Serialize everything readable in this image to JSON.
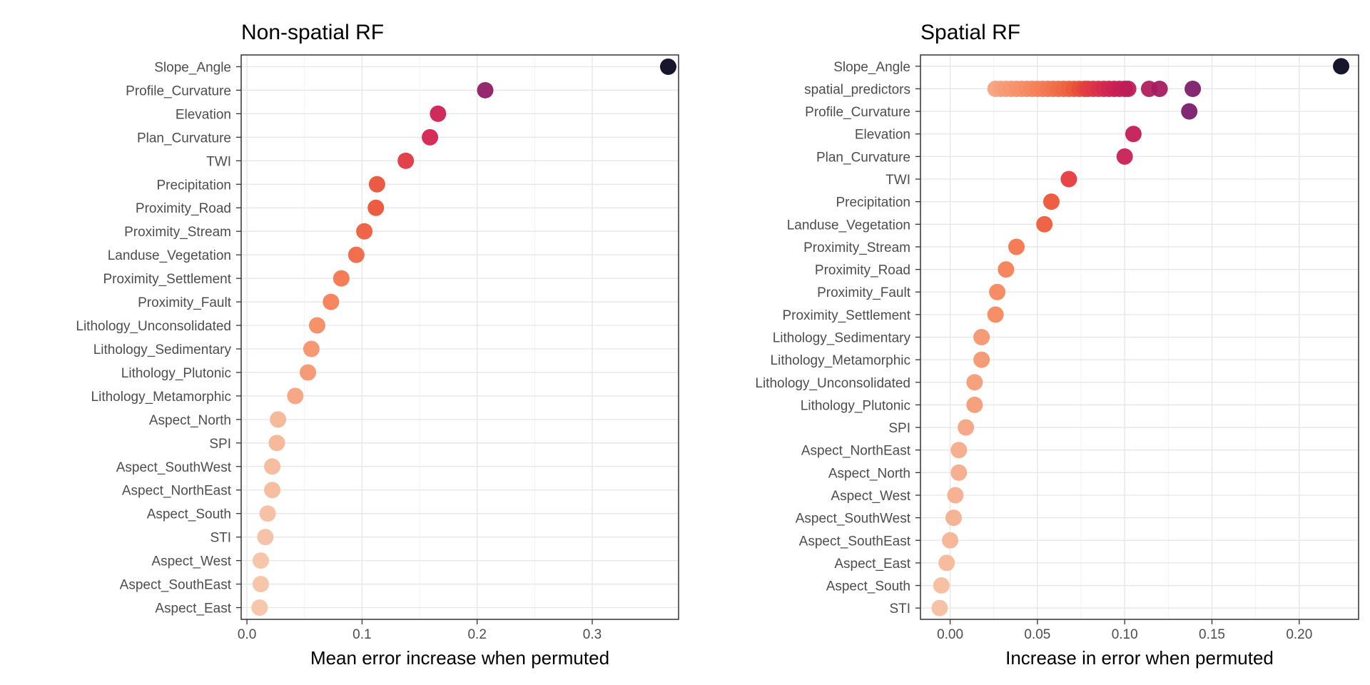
{
  "chart_data": [
    {
      "type": "scatter",
      "title": "Non-spatial RF",
      "xlabel": "Mean error increase when permuted",
      "ylabel": "",
      "xlim": [
        -0.005,
        0.375
      ],
      "xticks": [
        0.0,
        0.1,
        0.2,
        0.3
      ],
      "xtick_labels": [
        "0.0",
        "0.1",
        "0.2",
        "0.3"
      ],
      "grid": true,
      "color_scale": "magma (dark = high importance, light = low importance)",
      "categories": [
        "Slope_Angle",
        "Profile_Curvature",
        "Elevation",
        "Plan_Curvature",
        "TWI",
        "Precipitation",
        "Proximity_Road",
        "Proximity_Stream",
        "Landuse_Vegetation",
        "Proximity_Settlement",
        "Proximity_Fault",
        "Lithology_Unconsolidated",
        "Lithology_Sedimentary",
        "Lithology_Plutonic",
        "Lithology_Metamorphic",
        "Aspect_North",
        "SPI",
        "Aspect_SouthWest",
        "Aspect_NorthEast",
        "Aspect_South",
        "STI",
        "Aspect_West",
        "Aspect_SouthEast",
        "Aspect_East"
      ],
      "points": [
        {
          "y": "Slope_Angle",
          "x": 0.366,
          "color": "#0b0a22"
        },
        {
          "y": "Profile_Curvature",
          "x": 0.207,
          "color": "#8e1d66"
        },
        {
          "y": "Elevation",
          "x": 0.166,
          "color": "#cc2155"
        },
        {
          "y": "Plan_Curvature",
          "x": 0.159,
          "color": "#d52250"
        },
        {
          "y": "TWI",
          "x": 0.138,
          "color": "#e03940"
        },
        {
          "y": "Precipitation",
          "x": 0.113,
          "color": "#ea5138"
        },
        {
          "y": "Proximity_Road",
          "x": 0.112,
          "color": "#ea5338"
        },
        {
          "y": "Proximity_Stream",
          "x": 0.102,
          "color": "#ee5d3e"
        },
        {
          "y": "Landuse_Vegetation",
          "x": 0.095,
          "color": "#f06644"
        },
        {
          "y": "Proximity_Settlement",
          "x": 0.082,
          "color": "#f3754e"
        },
        {
          "y": "Proximity_Fault",
          "x": 0.073,
          "color": "#f47f57"
        },
        {
          "y": "Lithology_Unconsolidated",
          "x": 0.061,
          "color": "#f58c61"
        },
        {
          "y": "Lithology_Sedimentary",
          "x": 0.056,
          "color": "#f6926a"
        },
        {
          "y": "Lithology_Plutonic",
          "x": 0.053,
          "color": "#f69670"
        },
        {
          "y": "Lithology_Metamorphic",
          "x": 0.042,
          "color": "#f6a27e"
        },
        {
          "y": "Aspect_North",
          "x": 0.027,
          "color": "#f6b594"
        },
        {
          "y": "SPI",
          "x": 0.026,
          "color": "#f6b696"
        },
        {
          "y": "Aspect_SouthWest",
          "x": 0.022,
          "color": "#f6ba9b"
        },
        {
          "y": "Aspect_NorthEast",
          "x": 0.022,
          "color": "#f6ba9b"
        },
        {
          "y": "Aspect_South",
          "x": 0.018,
          "color": "#f6bea0"
        },
        {
          "y": "STI",
          "x": 0.016,
          "color": "#f6c0a3"
        },
        {
          "y": "Aspect_West",
          "x": 0.012,
          "color": "#f6c3a6"
        },
        {
          "y": "Aspect_SouthEast",
          "x": 0.012,
          "color": "#f6c3a6"
        },
        {
          "y": "Aspect_East",
          "x": 0.011,
          "color": "#f6c4a7"
        }
      ]
    },
    {
      "type": "scatter",
      "title": "Spatial RF",
      "xlabel": "Increase in error when permuted",
      "ylabel": "",
      "xlim": [
        -0.017,
        0.234
      ],
      "xticks": [
        0.0,
        0.05,
        0.1,
        0.15,
        0.2
      ],
      "xtick_labels": [
        "0.00",
        "0.05",
        "0.10",
        "0.15",
        "0.20"
      ],
      "grid": true,
      "color_scale": "magma (dark = high importance, light = low importance)",
      "categories": [
        "Slope_Angle",
        "spatial_predictors",
        "Profile_Curvature",
        "Elevation",
        "Plan_Curvature",
        "TWI",
        "Precipitation",
        "Landuse_Vegetation",
        "Proximity_Stream",
        "Proximity_Road",
        "Proximity_Fault",
        "Proximity_Settlement",
        "Lithology_Sedimentary",
        "Lithology_Metamorphic",
        "Lithology_Unconsolidated",
        "Lithology_Plutonic",
        "SPI",
        "Aspect_NorthEast",
        "Aspect_North",
        "Aspect_West",
        "Aspect_SouthWest",
        "Aspect_SouthEast",
        "Aspect_East",
        "Aspect_South",
        "STI"
      ],
      "points": [
        {
          "y": "Slope_Angle",
          "x": 0.224,
          "color": "#0b0a22"
        },
        {
          "y": "spatial_predictors",
          "x": 0.026,
          "color": "#f6a27e"
        },
        {
          "y": "spatial_predictors",
          "x": 0.029,
          "color": "#f6a07c"
        },
        {
          "y": "spatial_predictors",
          "x": 0.032,
          "color": "#f59c78"
        },
        {
          "y": "spatial_predictors",
          "x": 0.035,
          "color": "#f59874"
        },
        {
          "y": "spatial_predictors",
          "x": 0.038,
          "color": "#f59470"
        },
        {
          "y": "spatial_predictors",
          "x": 0.041,
          "color": "#f5906b"
        },
        {
          "y": "spatial_predictors",
          "x": 0.044,
          "color": "#f48c66"
        },
        {
          "y": "spatial_predictors",
          "x": 0.047,
          "color": "#f48862"
        },
        {
          "y": "spatial_predictors",
          "x": 0.05,
          "color": "#f3835e"
        },
        {
          "y": "spatial_predictors",
          "x": 0.053,
          "color": "#f37e59"
        },
        {
          "y": "spatial_predictors",
          "x": 0.056,
          "color": "#f27954"
        },
        {
          "y": "spatial_predictors",
          "x": 0.059,
          "color": "#f17450"
        },
        {
          "y": "spatial_predictors",
          "x": 0.062,
          "color": "#f06e4b"
        },
        {
          "y": "spatial_predictors",
          "x": 0.065,
          "color": "#ef6846"
        },
        {
          "y": "spatial_predictors",
          "x": 0.068,
          "color": "#ee6242"
        },
        {
          "y": "spatial_predictors",
          "x": 0.071,
          "color": "#ec5b3e"
        },
        {
          "y": "spatial_predictors",
          "x": 0.074,
          "color": "#e9503c"
        },
        {
          "y": "spatial_predictors",
          "x": 0.077,
          "color": "#e5463e"
        },
        {
          "y": "spatial_predictors",
          "x": 0.079,
          "color": "#e23e42"
        },
        {
          "y": "spatial_predictors",
          "x": 0.082,
          "color": "#df3846"
        },
        {
          "y": "spatial_predictors",
          "x": 0.085,
          "color": "#db314a"
        },
        {
          "y": "spatial_predictors",
          "x": 0.088,
          "color": "#d72b4d"
        },
        {
          "y": "spatial_predictors",
          "x": 0.091,
          "color": "#d32650"
        },
        {
          "y": "spatial_predictors",
          "x": 0.094,
          "color": "#ce2252"
        },
        {
          "y": "spatial_predictors",
          "x": 0.097,
          "color": "#c92054"
        },
        {
          "y": "spatial_predictors",
          "x": 0.1,
          "color": "#c31f56"
        },
        {
          "y": "spatial_predictors",
          "x": 0.102,
          "color": "#bd1e58"
        },
        {
          "y": "spatial_predictors",
          "x": 0.114,
          "color": "#b11d5d"
        },
        {
          "y": "spatial_predictors",
          "x": 0.12,
          "color": "#a31c61"
        },
        {
          "y": "spatial_predictors",
          "x": 0.139,
          "color": "#7d1d6a"
        },
        {
          "y": "Profile_Curvature",
          "x": 0.137,
          "color": "#7a1d6c"
        },
        {
          "y": "Elevation",
          "x": 0.105,
          "color": "#c41e56"
        },
        {
          "y": "Plan_Curvature",
          "x": 0.1,
          "color": "#c92054"
        },
        {
          "y": "TWI",
          "x": 0.068,
          "color": "#e53b3f"
        },
        {
          "y": "Precipitation",
          "x": 0.058,
          "color": "#ed5538"
        },
        {
          "y": "Landuse_Vegetation",
          "x": 0.054,
          "color": "#ee5c3c"
        },
        {
          "y": "Proximity_Stream",
          "x": 0.038,
          "color": "#f3764f"
        },
        {
          "y": "Proximity_Road",
          "x": 0.032,
          "color": "#f47f57"
        },
        {
          "y": "Proximity_Fault",
          "x": 0.027,
          "color": "#f5875e"
        },
        {
          "y": "Proximity_Settlement",
          "x": 0.026,
          "color": "#f58860"
        },
        {
          "y": "Lithology_Sedimentary",
          "x": 0.018,
          "color": "#f69670"
        },
        {
          "y": "Lithology_Metamorphic",
          "x": 0.018,
          "color": "#f69670"
        },
        {
          "y": "Lithology_Unconsolidated",
          "x": 0.014,
          "color": "#f69c77"
        },
        {
          "y": "Lithology_Plutonic",
          "x": 0.014,
          "color": "#f69c77"
        },
        {
          "y": "SPI",
          "x": 0.009,
          "color": "#f6a482"
        },
        {
          "y": "Aspect_NorthEast",
          "x": 0.005,
          "color": "#f6ab8a"
        },
        {
          "y": "Aspect_North",
          "x": 0.005,
          "color": "#f6ab8a"
        },
        {
          "y": "Aspect_West",
          "x": 0.003,
          "color": "#f6ae8d"
        },
        {
          "y": "Aspect_SouthWest",
          "x": 0.002,
          "color": "#f6b090"
        },
        {
          "y": "Aspect_SouthEast",
          "x": 0.0,
          "color": "#f6b494"
        },
        {
          "y": "Aspect_East",
          "x": -0.002,
          "color": "#f6b898"
        },
        {
          "y": "Aspect_South",
          "x": -0.005,
          "color": "#f6bd9e"
        },
        {
          "y": "STI",
          "x": -0.006,
          "color": "#f6bfa1"
        }
      ]
    }
  ]
}
